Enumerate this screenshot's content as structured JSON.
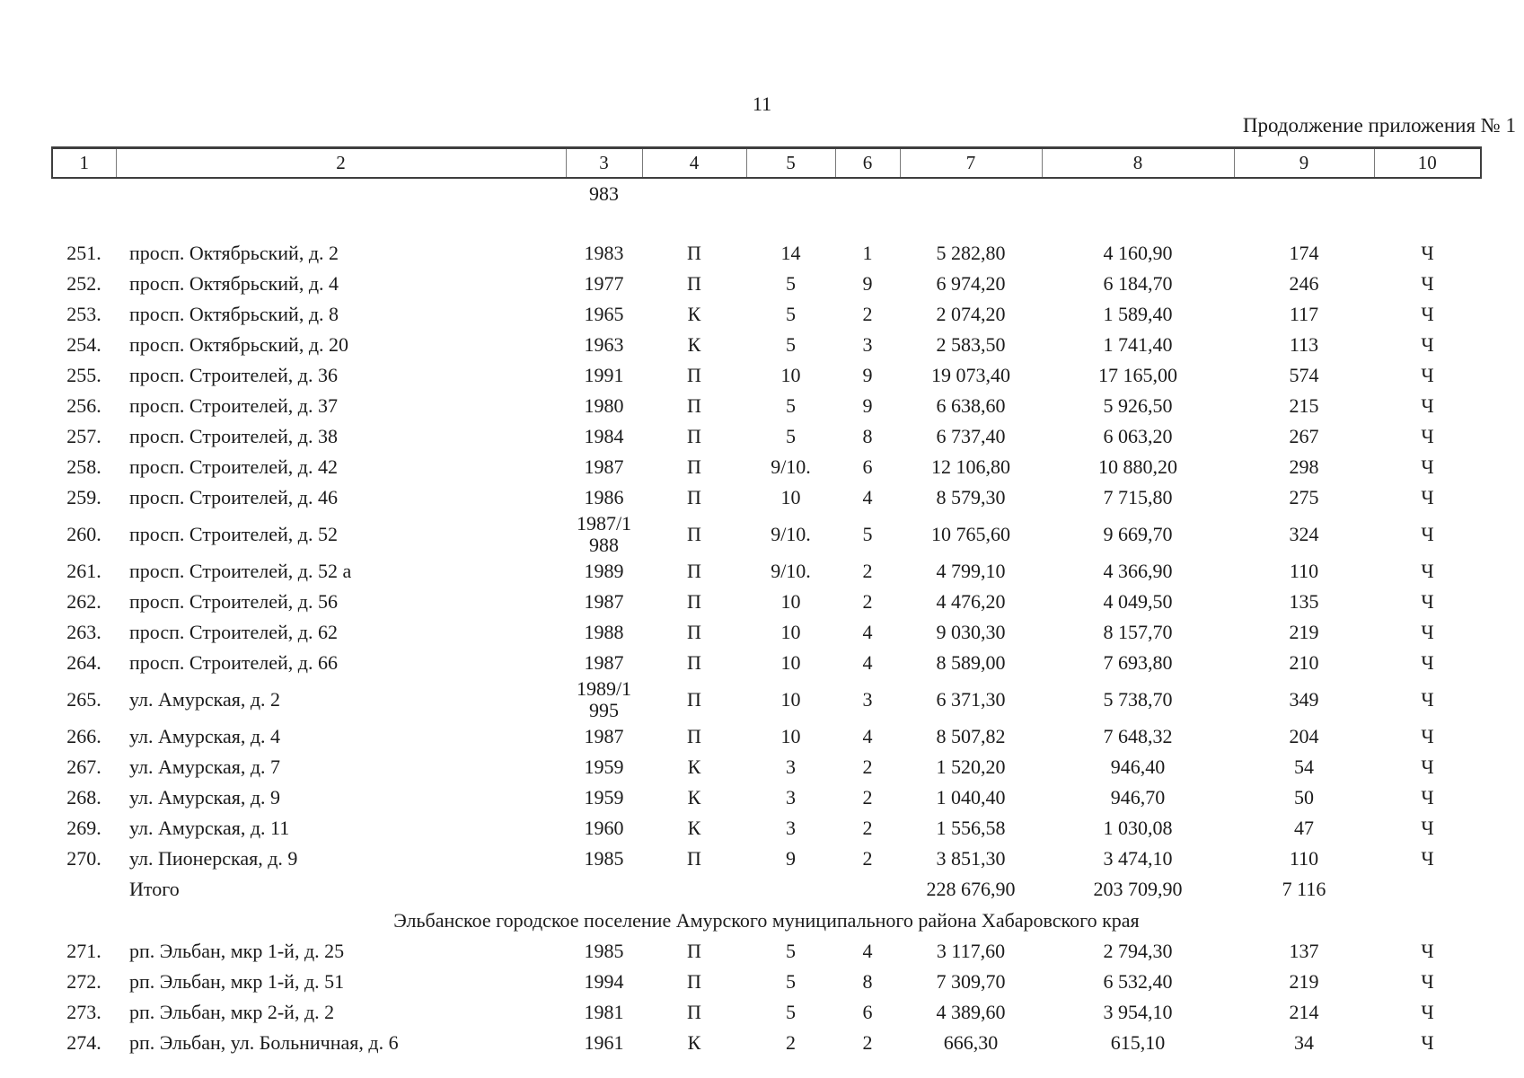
{
  "page": {
    "number": "11",
    "header_right": "Продолжение приложения № 1"
  },
  "table": {
    "column_headers": [
      "1",
      "2",
      "3",
      "4",
      "5",
      "6",
      "7",
      "8",
      "9",
      "10"
    ],
    "body": [
      {
        "kind": "row",
        "cells": [
          "",
          "",
          "983",
          "",
          "",
          "",
          "",
          "",
          "",
          ""
        ]
      },
      {
        "kind": "spacer"
      },
      {
        "kind": "row",
        "cells": [
          "251.",
          "просп. Октябрьский, д. 2",
          "1983",
          "П",
          "14",
          "1",
          "5 282,80",
          "4 160,90",
          "174",
          "Ч"
        ]
      },
      {
        "kind": "row",
        "cells": [
          "252.",
          "просп. Октябрьский, д. 4",
          "1977",
          "П",
          "5",
          "9",
          "6 974,20",
          "6 184,70",
          "246",
          "Ч"
        ]
      },
      {
        "kind": "row",
        "cells": [
          "253.",
          "просп. Октябрьский, д. 8",
          "1965",
          "К",
          "5",
          "2",
          "2 074,20",
          "1 589,40",
          "117",
          "Ч"
        ]
      },
      {
        "kind": "row",
        "cells": [
          "254.",
          "просп. Октябрьский, д. 20",
          "1963",
          "К",
          "5",
          "3",
          "2 583,50",
          "1 741,40",
          "113",
          "Ч"
        ]
      },
      {
        "kind": "row",
        "cells": [
          "255.",
          "просп. Строителей, д. 36",
          "1991",
          "П",
          "10",
          "9",
          "19 073,40",
          "17 165,00",
          "574",
          "Ч"
        ]
      },
      {
        "kind": "row",
        "cells": [
          "256.",
          "просп. Строителей, д. 37",
          "1980",
          "П",
          "5",
          "9",
          "6 638,60",
          "5 926,50",
          "215",
          "Ч"
        ]
      },
      {
        "kind": "row",
        "cells": [
          "257.",
          "просп. Строителей, д. 38",
          "1984",
          "П",
          "5",
          "8",
          "6 737,40",
          "6 063,20",
          "267",
          "Ч"
        ]
      },
      {
        "kind": "row",
        "cells": [
          "258.",
          "просп. Строителей, д. 42",
          "1987",
          "П",
          "9/10.",
          "6",
          "12 106,80",
          "10 880,20",
          "298",
          "Ч"
        ]
      },
      {
        "kind": "row",
        "cells": [
          "259.",
          "просп. Строителей, д. 46",
          "1986",
          "П",
          "10",
          "4",
          "8 579,30",
          "7 715,80",
          "275",
          "Ч"
        ]
      },
      {
        "kind": "row",
        "cells": [
          "260.",
          "просп. Строителей, д. 52",
          "1987/1\n988",
          "П",
          "9/10.",
          "5",
          "10 765,60",
          "9 669,70",
          "324",
          "Ч"
        ]
      },
      {
        "kind": "row",
        "cells": [
          "261.",
          "просп. Строителей, д. 52 а",
          "1989",
          "П",
          "9/10.",
          "2",
          "4 799,10",
          "4 366,90",
          "110",
          "Ч"
        ]
      },
      {
        "kind": "row",
        "cells": [
          "262.",
          "просп. Строителей, д. 56",
          "1987",
          "П",
          "10",
          "2",
          "4 476,20",
          "4 049,50",
          "135",
          "Ч"
        ]
      },
      {
        "kind": "row",
        "cells": [
          "263.",
          "просп. Строителей, д. 62",
          "1988",
          "П",
          "10",
          "4",
          "9 030,30",
          "8 157,70",
          "219",
          "Ч"
        ]
      },
      {
        "kind": "row",
        "cells": [
          "264.",
          "просп. Строителей, д. 66",
          "1987",
          "П",
          "10",
          "4",
          "8 589,00",
          "7 693,80",
          "210",
          "Ч"
        ]
      },
      {
        "kind": "row",
        "cells": [
          "265.",
          "ул. Амурская, д. 2",
          "1989/1\n995",
          "П",
          "10",
          "3",
          "6 371,30",
          "5 738,70",
          "349",
          "Ч"
        ]
      },
      {
        "kind": "row",
        "cells": [
          "266.",
          "ул. Амурская, д. 4",
          "1987",
          "П",
          "10",
          "4",
          "8 507,82",
          "7 648,32",
          "204",
          "Ч"
        ]
      },
      {
        "kind": "row",
        "cells": [
          "267.",
          "ул. Амурская, д. 7",
          "1959",
          "К",
          "3",
          "2",
          "1 520,20",
          "946,40",
          "54",
          "Ч"
        ]
      },
      {
        "kind": "row",
        "cells": [
          "268.",
          "ул. Амурская, д. 9",
          "1959",
          "К",
          "3",
          "2",
          "1 040,40",
          "946,70",
          "50",
          "Ч"
        ]
      },
      {
        "kind": "row",
        "cells": [
          "269.",
          "ул. Амурская, д. 11",
          "1960",
          "К",
          "3",
          "2",
          "1 556,58",
          "1 030,08",
          "47",
          "Ч"
        ]
      },
      {
        "kind": "row",
        "cells": [
          "270.",
          "ул. Пионерская, д. 9",
          "1985",
          "П",
          "9",
          "2",
          "3 851,30",
          "3 474,10",
          "110",
          "Ч"
        ]
      },
      {
        "kind": "row",
        "cells": [
          "",
          "Итого",
          "",
          "",
          "",
          "",
          "228 676,90",
          "203 709,90",
          "7 116",
          ""
        ]
      },
      {
        "kind": "section",
        "text": "Эльбанское городское поселение Амурского муниципального района Хабаровского края"
      },
      {
        "kind": "row",
        "cells": [
          "271.",
          "рп. Эльбан, мкр 1-й, д. 25",
          "1985",
          "П",
          "5",
          "4",
          "3 117,60",
          "2 794,30",
          "137",
          "Ч"
        ]
      },
      {
        "kind": "row",
        "cells": [
          "272.",
          "рп. Эльбан, мкр 1-й, д. 51",
          "1994",
          "П",
          "5",
          "8",
          "7 309,70",
          "6 532,40",
          "219",
          "Ч"
        ]
      },
      {
        "kind": "row",
        "cells": [
          "273.",
          "рп. Эльбан, мкр 2-й, д. 2",
          "1981",
          "П",
          "5",
          "6",
          "4 389,60",
          "3 954,10",
          "214",
          "Ч"
        ]
      },
      {
        "kind": "row",
        "cells": [
          "274.",
          "рп. Эльбан, ул. Больничная, д. 6",
          "1961",
          "К",
          "2",
          "2",
          "666,30",
          "615,10",
          "34",
          "Ч"
        ]
      }
    ]
  }
}
